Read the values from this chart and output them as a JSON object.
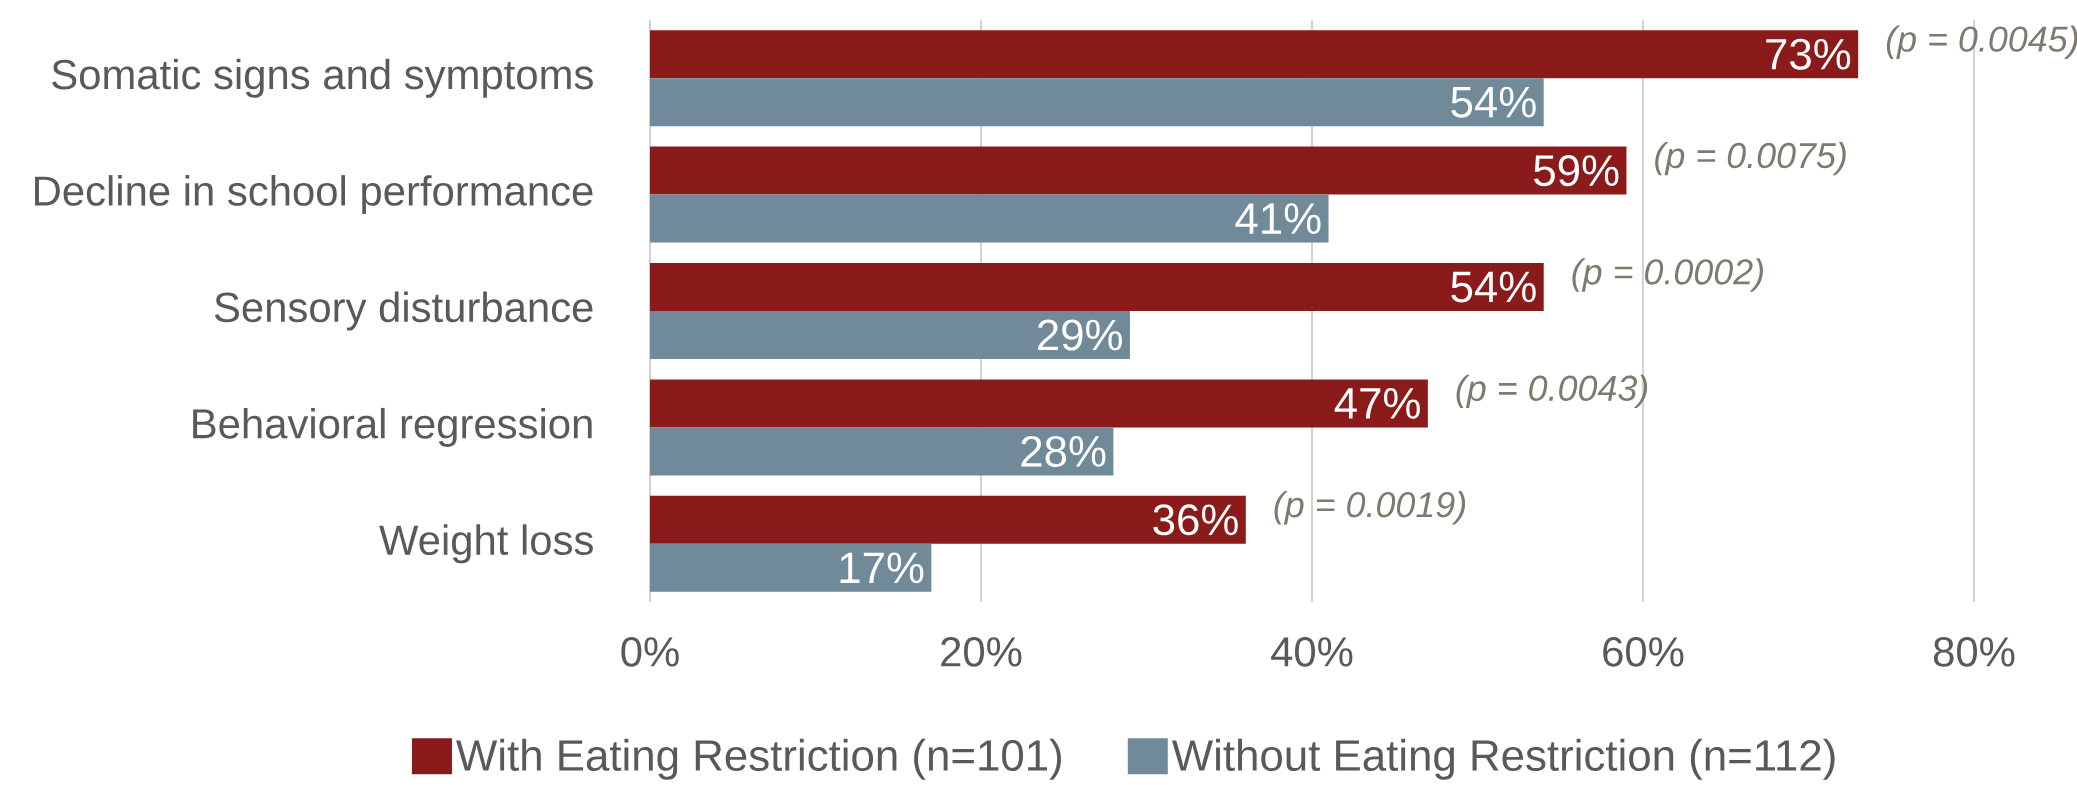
{
  "chart_data": {
    "type": "bar",
    "orientation": "horizontal",
    "categories": [
      "Somatic signs and symptoms",
      "Decline in school performance",
      "Sensory disturbance",
      "Behavioral regression",
      "Weight loss"
    ],
    "series": [
      {
        "name": "With Eating Restriction (n=101)",
        "color": "#8b1a1a",
        "values": [
          73,
          59,
          54,
          47,
          36
        ],
        "value_labels": [
          "73%",
          "59%",
          "54%",
          "47%",
          "36%"
        ]
      },
      {
        "name": "Without Eating Restriction (n=112)",
        "color": "#718a99",
        "values": [
          54,
          41,
          29,
          28,
          17
        ],
        "value_labels": [
          "54%",
          "41%",
          "29%",
          "28%",
          "17%"
        ]
      }
    ],
    "xlim": [
      0,
      80
    ],
    "xticks": [
      {
        "value": 0,
        "label": "0%"
      },
      {
        "value": 20,
        "label": "20%"
      },
      {
        "value": 40,
        "label": "40%"
      },
      {
        "value": 60,
        "label": "60%"
      },
      {
        "value": 80,
        "label": "80%"
      }
    ],
    "annotations": [
      "(p = 0.0045)",
      "(p = 0.0075)",
      "(p = 0.0002)",
      "(p = 0.0043)",
      "(p = 0.0019)"
    ],
    "grid": "x",
    "legend": "bottom"
  }
}
